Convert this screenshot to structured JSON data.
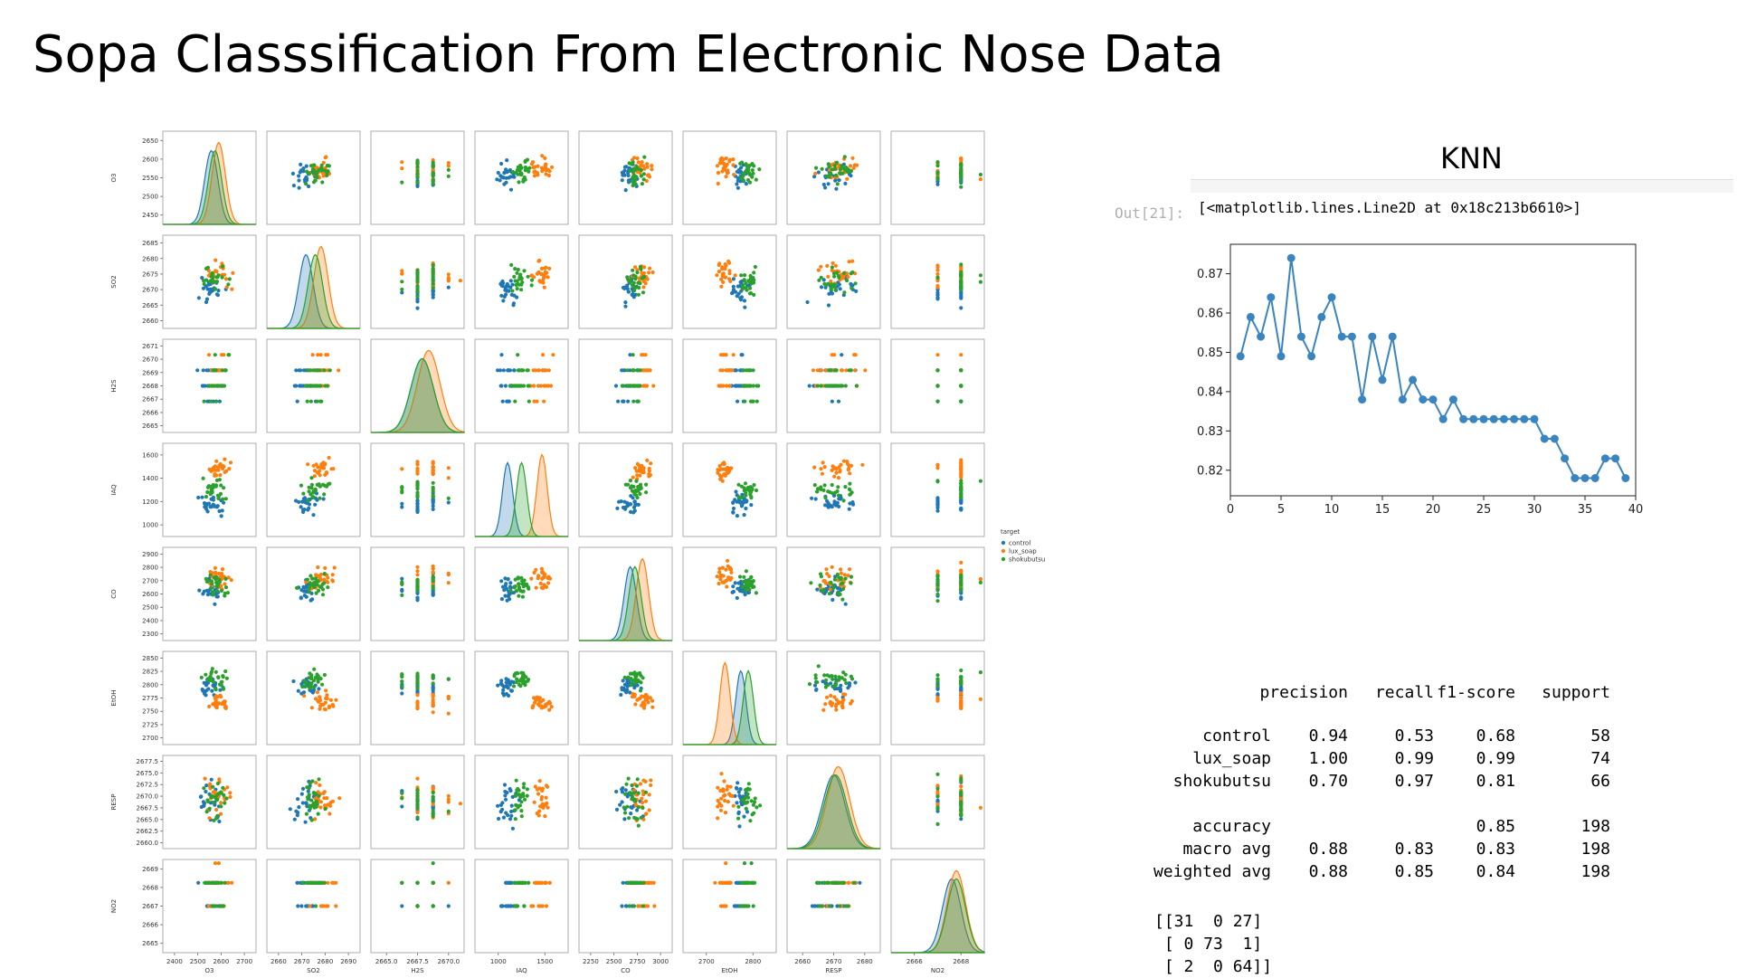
{
  "slide": {
    "title": "Sopa Classsification From Electronic Nose Data"
  },
  "colors": {
    "control": "#1f77b4",
    "lux_soap": "#ff7f0e",
    "shokubutsu": "#2ca02c"
  },
  "chart_data": [
    {
      "type": "scatter",
      "variables": [
        "O3",
        "SO2",
        "H2S",
        "IAQ",
        "CO",
        "EtOH",
        "RESP",
        "NO2"
      ],
      "legend": {
        "title": "target",
        "entries": [
          "control",
          "lux_soap",
          "shokubutsu"
        ],
        "placement": "right"
      },
      "axes": {
        "O3": {
          "ticks": [
            "2450",
            "2500",
            "2550",
            "2600",
            "2650"
          ],
          "xticks": [
            "2400",
            "2500",
            "2600",
            "2700"
          ]
        },
        "SO2": {
          "ticks": [
            "2660",
            "2665",
            "2670",
            "2675",
            "2680",
            "2685"
          ],
          "xticks": [
            "2660",
            "2670",
            "2680",
            "2690"
          ]
        },
        "H2S": {
          "ticks": [
            "2665",
            "2666",
            "2667",
            "2668",
            "2669",
            "2670",
            "2671"
          ],
          "xticks": [
            "2665.0",
            "2667.5",
            "2670.0"
          ]
        },
        "IAQ": {
          "ticks": [
            "1000",
            "1200",
            "1400",
            "1600"
          ],
          "xticks": [
            "1000",
            "1500"
          ]
        },
        "CO": {
          "ticks": [
            "2300",
            "2400",
            "2500",
            "2600",
            "2700",
            "2800",
            "2900"
          ],
          "xticks": [
            "2250",
            "2500",
            "2750",
            "3000"
          ]
        },
        "EtOH": {
          "ticks": [
            "2700",
            "2725",
            "2750",
            "2775",
            "2800",
            "2825",
            "2850"
          ],
          "xticks": [
            "2700",
            "2800"
          ]
        },
        "RESP": {
          "ticks": [
            "2660.0",
            "2662.5",
            "2665.0",
            "2667.5",
            "2670.0",
            "2672.5",
            "2675.0",
            "2677.5"
          ],
          "xticks": [
            "2660",
            "2670",
            "2680"
          ]
        },
        "NO2": {
          "ticks": [
            "2665",
            "2666",
            "2667",
            "2668",
            "2669"
          ],
          "xticks": [
            "2666",
            "2668"
          ]
        }
      }
    },
    {
      "type": "line",
      "title": "KNN",
      "x": [
        1,
        2,
        3,
        4,
        5,
        6,
        7,
        8,
        9,
        10,
        11,
        12,
        13,
        14,
        15,
        16,
        17,
        18,
        19,
        20,
        21,
        22,
        23,
        24,
        25,
        26,
        27,
        28,
        29,
        30,
        31,
        32,
        33,
        34,
        35,
        36,
        37,
        38,
        39
      ],
      "y": [
        0.849,
        0.859,
        0.854,
        0.864,
        0.849,
        0.874,
        0.854,
        0.849,
        0.859,
        0.864,
        0.854,
        0.854,
        0.838,
        0.854,
        0.843,
        0.854,
        0.838,
        0.843,
        0.838,
        0.838,
        0.833,
        0.838,
        0.833,
        0.833,
        0.833,
        0.833,
        0.833,
        0.833,
        0.833,
        0.833,
        0.828,
        0.828,
        0.823,
        0.818,
        0.818,
        0.818,
        0.823,
        0.823,
        0.818
      ],
      "xticks": [
        "0",
        "5",
        "10",
        "15",
        "20",
        "25",
        "30",
        "35",
        "40"
      ],
      "yticks": [
        "0.82",
        "0.83",
        "0.84",
        "0.85",
        "0.86",
        "0.87"
      ],
      "xlim": [
        0,
        40
      ],
      "ylim": [
        0.8135,
        0.8775
      ]
    }
  ],
  "notebook": {
    "out_prompt": "Out[21]:",
    "out_text": "[<matplotlib.lines.Line2D at 0x18c213b6610>]"
  },
  "report": {
    "headers": [
      "precision",
      "recall",
      "f1-score",
      "support"
    ],
    "rows": [
      {
        "label": "control",
        "precision": "0.94",
        "recall": "0.53",
        "f1": "0.68",
        "support": "58"
      },
      {
        "label": "lux_soap",
        "precision": "1.00",
        "recall": "0.99",
        "f1": "0.99",
        "support": "74"
      },
      {
        "label": "shokubutsu",
        "precision": "0.70",
        "recall": "0.97",
        "f1": "0.81",
        "support": "66"
      }
    ],
    "summary": [
      {
        "label": "accuracy",
        "precision": "",
        "recall": "",
        "f1": "0.85",
        "support": "198"
      },
      {
        "label": "macro avg",
        "precision": "0.88",
        "recall": "0.83",
        "f1": "0.83",
        "support": "198"
      },
      {
        "label": "weighted avg",
        "precision": "0.88",
        "recall": "0.85",
        "f1": "0.84",
        "support": "198"
      }
    ],
    "confusion_matrix": [
      "[[31  0 27]",
      " [ 0 73  1]",
      " [ 2  0 64]]"
    ]
  }
}
